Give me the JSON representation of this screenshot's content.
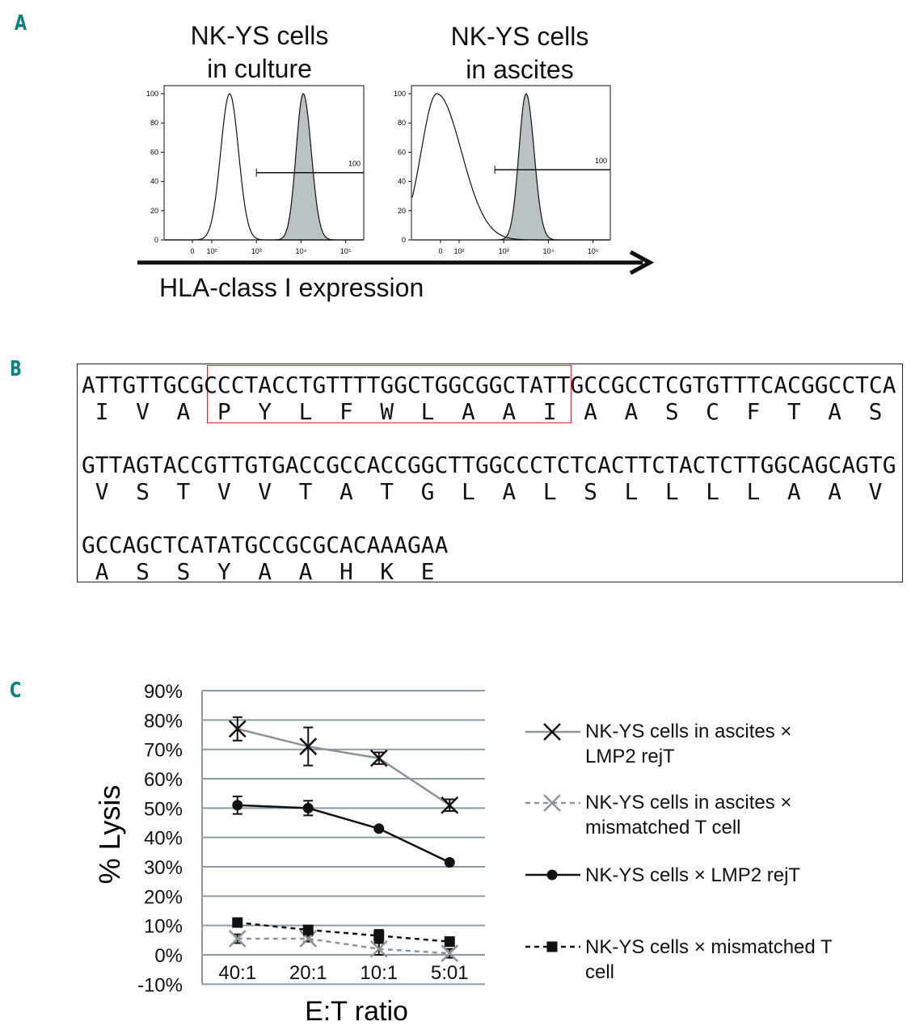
{
  "panels": {
    "a": "A",
    "b": "B",
    "c": "C"
  },
  "colors": {
    "panel_letter": "#0f8080",
    "highlight_box": "#e0262b",
    "filled_histogram": "#b9c3c6",
    "gray_series": "#8a9499",
    "grid": "#8b9ba6"
  },
  "panel_a": {
    "x_axis_label": "HLA-class I expression",
    "histograms": [
      {
        "title_line1": "NK-YS cells",
        "title_line2": "in culture",
        "y_ticks": [
          "0",
          "20",
          "40",
          "60",
          "80",
          "100"
        ],
        "x_ticks": [
          "0",
          "10²",
          "10³",
          "10⁴",
          "10⁵"
        ],
        "gate_label": "100",
        "gate_from_log10": 3.0,
        "control_peak_log10": 2.4,
        "stained_peak_log10": 4.05
      },
      {
        "title_line1": "NK-YS cells",
        "title_line2": "in ascites",
        "y_ticks": [
          "0",
          "20",
          "40",
          "60",
          "80",
          "100"
        ],
        "x_ticks": [
          "0",
          "10²",
          "10³",
          "10⁴",
          "10⁵"
        ],
        "gate_label": "100",
        "gate_from_log10": 2.8,
        "control_peak_log10": 1.5,
        "stained_peak_log10": 3.5
      }
    ]
  },
  "panel_b": {
    "blocks": [
      {
        "dna": "ATTGTTGCGCCCTACCTGTTTTGGCTGGCGGCTATTGCCGCCTCGTGTTTCACGGCCTCA",
        "aa": [
          "I",
          "V",
          "A",
          "P",
          "Y",
          "L",
          "F",
          "W",
          "L",
          "A",
          "A",
          "I",
          "A",
          "A",
          "S",
          "C",
          "F",
          "T",
          "A",
          "S"
        ]
      },
      {
        "dna": "GTTAGTACCGTTGTGACCGCCACCGGCTTGGCCCTCTCACTTCTACTCTTGGCAGCAGTG",
        "aa": [
          "V",
          "S",
          "T",
          "V",
          "V",
          "T",
          "A",
          "T",
          "G",
          "L",
          "A",
          "L",
          "S",
          "L",
          "L",
          "L",
          "L",
          "A",
          "A",
          "V"
        ]
      },
      {
        "dna": "GCCAGCTCATATGCCGCGCACAAAGAA",
        "aa": [
          "A",
          "S",
          "S",
          "Y",
          "A",
          "A",
          "H",
          "K",
          "E"
        ]
      }
    ],
    "highlighted_epitope": "PYLFWLAAI"
  },
  "chart_data": {
    "type": "line",
    "title": "",
    "xlabel": "E:T ratio",
    "ylabel": "% Lysis",
    "categories": [
      "40:1",
      "20:1",
      "10:1",
      "5:01"
    ],
    "ylim": [
      -10,
      90
    ],
    "y_ticks": [
      "-10%",
      "0%",
      "10%",
      "20%",
      "30%",
      "40%",
      "50%",
      "60%",
      "70%",
      "80%",
      "90%"
    ],
    "grid": true,
    "legend_placement": "right",
    "series": [
      {
        "name": "NK-YS cells in ascites × LMP2 rejT",
        "name_line1": "NK-YS cells in ascites ×",
        "name_line2": "LMP2 rejT",
        "values": [
          77,
          71,
          67,
          51
        ],
        "errors": [
          4,
          6.5,
          2,
          2
        ],
        "marker": "x",
        "line": "solid",
        "line_color": "#8a9499",
        "marker_color": "#111111"
      },
      {
        "name": "NK-YS cells in ascites × mismatched T cell",
        "name_line1": "NK-YS cells in ascites ×",
        "name_line2": "mismatched T cell",
        "values": [
          5.5,
          5.5,
          2,
          0.5
        ],
        "errors": [
          1.5,
          1,
          2,
          1.5
        ],
        "marker": "x",
        "line": "dashed",
        "line_color": "#8a9499",
        "marker_color": "#8a9499"
      },
      {
        "name": "NK-YS cells × LMP2 rejT",
        "name_line1": "NK-YS cells × LMP2 rejT",
        "name_line2": "",
        "values": [
          51,
          50,
          43,
          31.5
        ],
        "errors": [
          3,
          2.5,
          0.5,
          0.5
        ],
        "marker": "circle",
        "line": "solid",
        "line_color": "#111111",
        "marker_color": "#111111"
      },
      {
        "name": "NK-YS cells × mismatched T cell",
        "name_line1": "NK-YS cells × mismatched T",
        "name_line2": "cell",
        "values": [
          11,
          8.5,
          6.5,
          4.5
        ],
        "errors": [
          1,
          1,
          2,
          1.5
        ],
        "marker": "square",
        "line": "dashed",
        "line_color": "#111111",
        "marker_color": "#111111"
      }
    ]
  }
}
